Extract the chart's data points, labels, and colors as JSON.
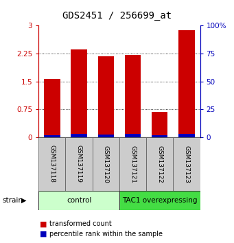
{
  "title": "GDS2451 / 256699_at",
  "samples": [
    "GSM137118",
    "GSM137119",
    "GSM137120",
    "GSM137121",
    "GSM137122",
    "GSM137123"
  ],
  "red_values": [
    1.57,
    2.36,
    2.17,
    2.22,
    0.68,
    2.87
  ],
  "blue_values": [
    0.06,
    0.1,
    0.07,
    0.09,
    0.05,
    0.1
  ],
  "groups": [
    {
      "label": "control",
      "start": 0,
      "end": 3,
      "color": "#ccffcc"
    },
    {
      "label": "TAC1 overexpressing",
      "start": 3,
      "end": 6,
      "color": "#44dd44"
    }
  ],
  "ylim_left": [
    0,
    3
  ],
  "yticks_left": [
    0,
    0.75,
    1.5,
    2.25,
    3
  ],
  "ylim_right": [
    0,
    100
  ],
  "yticks_right": [
    0,
    25,
    50,
    75,
    100
  ],
  "ytick_labels_right": [
    "0",
    "25",
    "50",
    "75",
    "100%"
  ],
  "bar_width": 0.6,
  "red_color": "#cc0000",
  "blue_color": "#0000bb",
  "bg_color": "#ffffff",
  "strain_label": "strain",
  "legend_red": "transformed count",
  "legend_blue": "percentile rank within the sample",
  "title_fontsize": 10,
  "tick_fontsize": 7.5,
  "sample_fontsize": 6.5,
  "group_fontsize": 7.5,
  "legend_fontsize": 7
}
